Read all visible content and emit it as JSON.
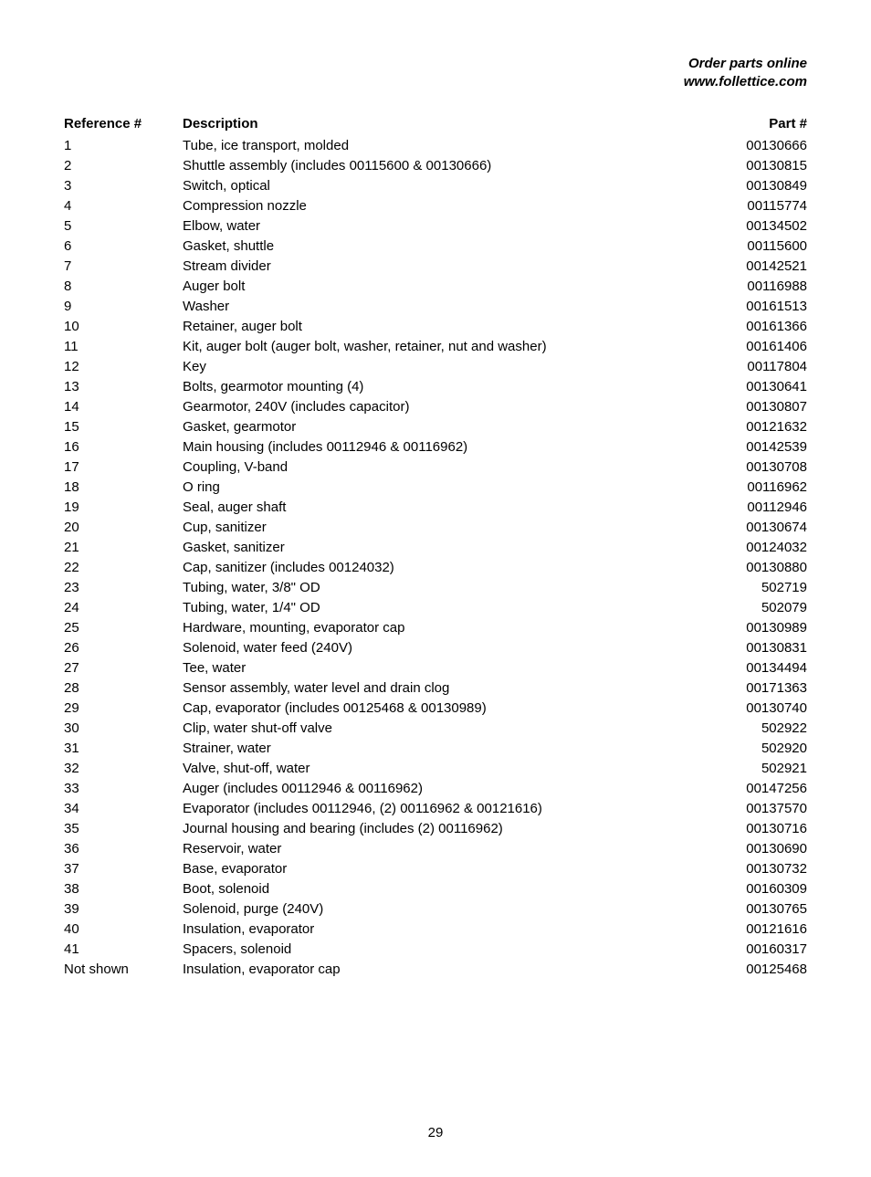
{
  "header": {
    "line1": "Order parts online",
    "line2": "www.follettice.com"
  },
  "table": {
    "columns": {
      "ref": "Reference #",
      "desc": "Description",
      "part": "Part #"
    },
    "rows": [
      {
        "ref": "1",
        "desc": "Tube, ice transport, molded",
        "part": "00130666"
      },
      {
        "ref": "2",
        "desc": "Shuttle assembly (includes 00115600 & 00130666)",
        "part": "00130815"
      },
      {
        "ref": "3",
        "desc": "Switch, optical",
        "part": "00130849"
      },
      {
        "ref": "4",
        "desc": "Compression nozzle",
        "part": "00115774"
      },
      {
        "ref": "5",
        "desc": "Elbow, water",
        "part": "00134502"
      },
      {
        "ref": "6",
        "desc": "Gasket, shuttle",
        "part": "00115600"
      },
      {
        "ref": "7",
        "desc": "Stream divider",
        "part": "00142521"
      },
      {
        "ref": "8",
        "desc": "Auger bolt",
        "part": "00116988"
      },
      {
        "ref": "9",
        "desc": "Washer",
        "part": "00161513"
      },
      {
        "ref": "10",
        "desc": "Retainer, auger bolt",
        "part": "00161366"
      },
      {
        "ref": "11",
        "desc": "Kit, auger bolt (auger bolt, washer, retainer, nut and washer)",
        "part": "00161406"
      },
      {
        "ref": "12",
        "desc": "Key",
        "part": "00117804"
      },
      {
        "ref": "13",
        "desc": "Bolts, gearmotor mounting (4)",
        "part": "00130641"
      },
      {
        "ref": "14",
        "desc": "Gearmotor, 240V (includes capacitor)",
        "part": "00130807"
      },
      {
        "ref": "15",
        "desc": "Gasket, gearmotor",
        "part": "00121632"
      },
      {
        "ref": "16",
        "desc": "Main housing (includes 00112946 & 00116962)",
        "part": "00142539"
      },
      {
        "ref": "17",
        "desc": "Coupling, V-band",
        "part": "00130708"
      },
      {
        "ref": "18",
        "desc": "O ring",
        "part": "00116962"
      },
      {
        "ref": "19",
        "desc": "Seal, auger shaft",
        "part": "00112946"
      },
      {
        "ref": "20",
        "desc": "Cup, sanitizer",
        "part": "00130674"
      },
      {
        "ref": "21",
        "desc": "Gasket, sanitizer",
        "part": "00124032"
      },
      {
        "ref": "22",
        "desc": "Cap, sanitizer (includes 00124032)",
        "part": "00130880"
      },
      {
        "ref": "23",
        "desc": "Tubing, water, 3/8\" OD",
        "part": "502719"
      },
      {
        "ref": "24",
        "desc": "Tubing, water, 1/4\" OD",
        "part": "502079"
      },
      {
        "ref": "25",
        "desc": "Hardware, mounting, evaporator cap",
        "part": "00130989"
      },
      {
        "ref": "26",
        "desc": "Solenoid, water feed (240V)",
        "part": "00130831"
      },
      {
        "ref": "27",
        "desc": "Tee, water",
        "part": "00134494"
      },
      {
        "ref": "28",
        "desc": "Sensor assembly, water level and drain clog",
        "part": "00171363"
      },
      {
        "ref": "29",
        "desc": "Cap, evaporator (includes 00125468 & 00130989)",
        "part": "00130740"
      },
      {
        "ref": "30",
        "desc": "Clip, water shut-off valve",
        "part": "502922"
      },
      {
        "ref": "31",
        "desc": "Strainer, water",
        "part": "502920"
      },
      {
        "ref": "32",
        "desc": "Valve, shut-off, water",
        "part": "502921"
      },
      {
        "ref": "33",
        "desc": "Auger (includes 00112946 & 00116962)",
        "part": "00147256"
      },
      {
        "ref": "34",
        "desc": "Evaporator (includes 00112946, (2) 00116962 & 00121616)",
        "part": "00137570"
      },
      {
        "ref": "35",
        "desc": "Journal housing and bearing (includes (2) 00116962)",
        "part": "00130716"
      },
      {
        "ref": "36",
        "desc": "Reservoir, water",
        "part": "00130690"
      },
      {
        "ref": "37",
        "desc": "Base, evaporator",
        "part": "00130732"
      },
      {
        "ref": "38",
        "desc": "Boot, solenoid",
        "part": "00160309"
      },
      {
        "ref": "39",
        "desc": "Solenoid, purge (240V)",
        "part": "00130765"
      },
      {
        "ref": "40",
        "desc": "Insulation, evaporator",
        "part": "00121616"
      },
      {
        "ref": "41",
        "desc": "Spacers, solenoid",
        "part": "00160317"
      },
      {
        "ref": "Not shown",
        "desc": "Insulation, evaporator cap",
        "part": "00125468"
      }
    ]
  },
  "pageNumber": "29"
}
